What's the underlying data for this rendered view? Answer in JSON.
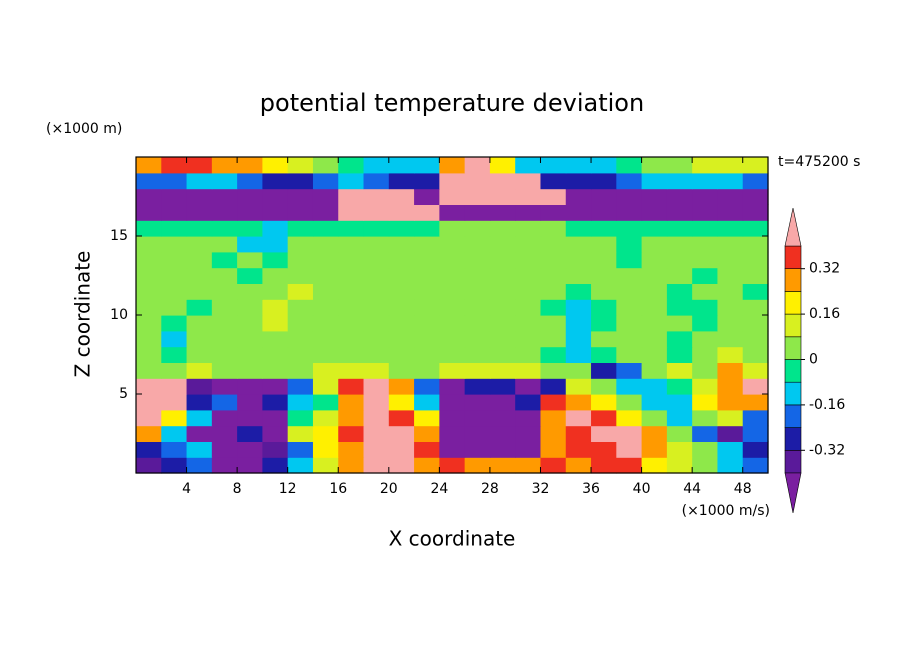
{
  "chart_data": {
    "type": "contourf",
    "title": "potential temperature deviation",
    "x_label": "X coordinate",
    "y_label": "Z coordinate",
    "x_unit_label": "(×1000 m/s)",
    "y_unit_label": "(×1000 m)",
    "annotation": "t=475200 s",
    "xlim": [
      0,
      50
    ],
    "ylim": [
      0,
      20
    ],
    "xticks": [
      4,
      8,
      12,
      16,
      20,
      24,
      28,
      32,
      36,
      40,
      44,
      48
    ],
    "yticks": [
      5,
      10,
      15
    ],
    "levels": [
      -0.4,
      -0.32,
      -0.24,
      -0.16,
      -0.08,
      0,
      0.08,
      0.16,
      0.24,
      0.32,
      0.4
    ],
    "colors": [
      "#5a1a9a",
      "#1c1ca6",
      "#1466e6",
      "#00c8f0",
      "#00e58c",
      "#8ee84a",
      "#d8f020",
      "#fff000",
      "#ff9a00",
      "#f03020"
    ],
    "under_color": "#7a1fa0",
    "over_color": "#f8a8a8",
    "colorbar_ticks": [
      -0.32,
      -0.16,
      0,
      0.16,
      0.32
    ],
    "x": [
      1,
      3,
      5,
      7,
      9,
      11,
      13,
      15,
      17,
      19,
      21,
      23,
      25,
      27,
      29,
      31,
      33,
      35,
      37,
      39,
      41,
      43,
      45,
      47,
      49
    ],
    "y": [
      0.5,
      1.5,
      2.5,
      3.5,
      4.5,
      5.5,
      6.5,
      7.5,
      8.5,
      9.5,
      10.5,
      11.5,
      12.5,
      13.5,
      14.5,
      15.5,
      16.5,
      17.5,
      18.5,
      19.5
    ],
    "z": [
      [
        -0.35,
        -0.3,
        -0.2,
        -0.45,
        -0.45,
        -0.3,
        -0.1,
        0.1,
        0.3,
        0.5,
        0.5,
        0.3,
        0.35,
        0.3,
        0.25,
        0.3,
        0.35,
        0.3,
        0.35,
        0.35,
        0.2,
        0.1,
        0.0,
        -0.1,
        -0.2
      ],
      [
        -0.3,
        -0.2,
        -0.1,
        -0.45,
        -0.45,
        -0.35,
        -0.2,
        0.2,
        0.3,
        0.5,
        0.5,
        0.35,
        -0.45,
        -0.45,
        -0.45,
        -0.45,
        0.3,
        0.35,
        0.35,
        0.5,
        0.3,
        0.1,
        0.05,
        -0.1,
        -0.3
      ],
      [
        0.3,
        -0.15,
        -0.45,
        -0.45,
        -0.3,
        -0.45,
        0.1,
        0.2,
        0.35,
        0.5,
        0.45,
        0.3,
        -0.45,
        -0.45,
        -0.45,
        -0.45,
        0.3,
        0.35,
        0.4,
        0.5,
        0.25,
        0.05,
        -0.2,
        -0.35,
        -0.2
      ],
      [
        0.5,
        0.2,
        -0.1,
        -0.45,
        -0.45,
        -0.45,
        -0.05,
        0.1,
        0.3,
        0.45,
        0.35,
        0.2,
        -0.45,
        -0.45,
        -0.45,
        -0.45,
        0.3,
        0.4,
        0.35,
        0.2,
        0.05,
        -0.1,
        0.0,
        0.1,
        -0.2
      ],
      [
        0.5,
        0.5,
        -0.3,
        -0.2,
        -0.45,
        -0.3,
        -0.1,
        -0.05,
        0.3,
        0.4,
        0.2,
        -0.1,
        -0.45,
        -0.45,
        -0.45,
        -0.3,
        0.35,
        0.3,
        0.2,
        0.05,
        -0.1,
        -0.1,
        0.2,
        0.3,
        0.25
      ],
      [
        0.5,
        0.45,
        -0.35,
        -0.45,
        -0.45,
        -0.45,
        -0.2,
        0.1,
        0.35,
        0.4,
        0.3,
        -0.2,
        -0.45,
        -0.3,
        -0.3,
        -0.45,
        -0.3,
        0.1,
        0.0,
        -0.1,
        -0.15,
        -0.05,
        0.1,
        0.3,
        0.5
      ],
      [
        0.05,
        0.05,
        0.08,
        0.05,
        0.03,
        0.05,
        0.05,
        0.1,
        0.12,
        0.1,
        0.05,
        0.05,
        0.12,
        0.15,
        0.12,
        0.1,
        0.05,
        0.05,
        -0.25,
        -0.2,
        0.05,
        0.1,
        0.05,
        0.3,
        0.1
      ],
      [
        0.03,
        -0.05,
        0.03,
        0.02,
        0.03,
        0.03,
        0.05,
        0.03,
        0.05,
        0.03,
        0.02,
        0.03,
        0.05,
        0.05,
        0.05,
        0.03,
        -0.05,
        -0.1,
        -0.05,
        0.03,
        0.05,
        -0.05,
        0.03,
        0.1,
        0.05
      ],
      [
        0.03,
        -0.1,
        0.03,
        0.03,
        0.05,
        0.03,
        0.03,
        0.05,
        0.03,
        0.03,
        0.03,
        0.05,
        0.03,
        0.03,
        0.03,
        0.05,
        0.03,
        -0.1,
        0.03,
        0.03,
        0.03,
        -0.05,
        0.03,
        0.03,
        0.03
      ],
      [
        0.03,
        -0.05,
        0.03,
        0.05,
        0.03,
        0.1,
        0.05,
        0.03,
        0.03,
        0.03,
        0.03,
        0.03,
        0.03,
        0.05,
        0.03,
        0.03,
        0.03,
        -0.1,
        -0.05,
        0.03,
        0.03,
        0.03,
        -0.05,
        0.03,
        0.03
      ],
      [
        0.03,
        0.03,
        -0.05,
        0.03,
        0.05,
        0.12,
        0.03,
        0.03,
        0.03,
        0.05,
        0.03,
        0.03,
        0.03,
        0.05,
        0.03,
        0.03,
        -0.05,
        -0.1,
        -0.05,
        0.03,
        0.03,
        -0.05,
        -0.05,
        0.03,
        0.03
      ],
      [
        0.03,
        0.03,
        0.03,
        0.03,
        0.05,
        0.05,
        0.1,
        0.05,
        0.03,
        0.03,
        0.03,
        0.03,
        0.03,
        0.03,
        0.03,
        0.03,
        0.03,
        -0.05,
        0.03,
        0.03,
        0.03,
        -0.05,
        0.03,
        0.03,
        -0.05
      ],
      [
        0.03,
        0.03,
        0.03,
        0.03,
        -0.05,
        0.03,
        0.03,
        0.03,
        0.03,
        0.03,
        0.03,
        0.03,
        0.03,
        0.03,
        0.03,
        0.03,
        0.03,
        0.03,
        0.03,
        0.03,
        0.03,
        0.03,
        -0.05,
        0.03,
        0.03
      ],
      [
        0.03,
        0.03,
        0.03,
        -0.05,
        0.03,
        -0.05,
        0.03,
        0.03,
        0.03,
        0.05,
        0.03,
        0.03,
        0.03,
        0.03,
        0.03,
        0.03,
        0.03,
        0.03,
        0.03,
        -0.05,
        0.03,
        0.03,
        0.03,
        0.03,
        0.03
      ],
      [
        0.03,
        0.03,
        0.03,
        0.03,
        -0.1,
        -0.1,
        0.03,
        0.03,
        0.03,
        0.03,
        0.03,
        0.03,
        0.03,
        0.03,
        0.03,
        0.03,
        0.03,
        0.03,
        0.03,
        -0.05,
        0.03,
        0.03,
        0.03,
        0.03,
        0.03
      ],
      [
        -0.05,
        -0.05,
        -0.05,
        -0.05,
        -0.05,
        -0.1,
        -0.05,
        -0.05,
        -0.05,
        -0.05,
        -0.05,
        -0.05,
        0.03,
        0.03,
        0.03,
        0.03,
        0.03,
        -0.05,
        -0.05,
        -0.05,
        -0.05,
        -0.05,
        -0.05,
        -0.05,
        -0.05
      ],
      [
        -0.42,
        -0.42,
        -0.42,
        -0.42,
        -0.42,
        -0.42,
        -0.42,
        -0.42,
        0.5,
        0.5,
        0.5,
        0.5,
        -0.42,
        -0.42,
        -0.42,
        -0.42,
        -0.42,
        -0.42,
        -0.42,
        -0.42,
        -0.42,
        -0.42,
        -0.42,
        -0.42,
        -0.42
      ],
      [
        -0.42,
        -0.42,
        -0.42,
        -0.42,
        -0.42,
        -0.42,
        -0.42,
        -0.42,
        0.5,
        0.5,
        0.5,
        -0.42,
        0.5,
        0.5,
        0.5,
        0.5,
        0.5,
        -0.42,
        -0.42,
        -0.42,
        -0.42,
        -0.42,
        -0.42,
        -0.42,
        -0.42
      ],
      [
        -0.2,
        -0.2,
        -0.15,
        -0.15,
        -0.2,
        -0.25,
        -0.25,
        -0.2,
        -0.15,
        -0.2,
        -0.3,
        -0.3,
        0.5,
        0.5,
        0.5,
        0.5,
        -0.3,
        -0.3,
        -0.3,
        -0.2,
        -0.15,
        -0.1,
        -0.1,
        -0.15,
        -0.2
      ],
      [
        0.3,
        0.35,
        0.35,
        0.3,
        0.3,
        0.2,
        0.1,
        0.05,
        -0.05,
        -0.1,
        -0.1,
        -0.1,
        0.3,
        0.5,
        0.2,
        -0.1,
        -0.1,
        -0.1,
        -0.1,
        -0.05,
        0.05,
        0.05,
        0.1,
        0.1,
        0.1
      ]
    ]
  }
}
